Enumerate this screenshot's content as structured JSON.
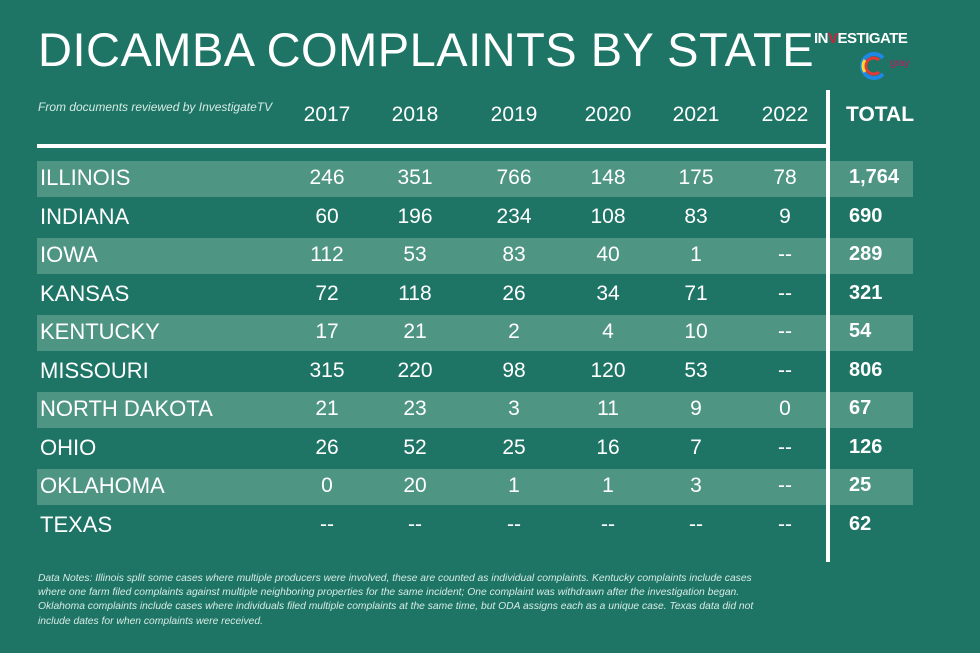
{
  "title": "DICAMBA COMPLAINTS BY STATE",
  "subtitle": "From documents reviewed by InvestigateTV",
  "logo": {
    "text_pre": "IN",
    "text_v": "V",
    "text_post": "ESTIGATE",
    "sub": "gray"
  },
  "colors": {
    "background": "#1f7565",
    "stripe": "#4f9584",
    "accent": "#d0203a"
  },
  "columns": [
    "2017",
    "2018",
    "2019",
    "2020",
    "2021",
    "2022"
  ],
  "total_label": "TOTAL",
  "rows": [
    {
      "state": "ILLINOIS",
      "values": [
        "246",
        "351",
        "766",
        "148",
        "175",
        "78"
      ],
      "total": "1,764"
    },
    {
      "state": "INDIANA",
      "values": [
        "60",
        "196",
        "234",
        "108",
        "83",
        "9"
      ],
      "total": "690"
    },
    {
      "state": "IOWA",
      "values": [
        "112",
        "53",
        "83",
        "40",
        "1",
        "--"
      ],
      "total": "289"
    },
    {
      "state": "KANSAS",
      "values": [
        "72",
        "118",
        "26",
        "34",
        "71",
        "--"
      ],
      "total": "321"
    },
    {
      "state": "KENTUCKY",
      "values": [
        "17",
        "21",
        "2",
        "4",
        "10",
        "--"
      ],
      "total": "54"
    },
    {
      "state": "MISSOURI",
      "values": [
        "315",
        "220",
        "98",
        "120",
        "53",
        "--"
      ],
      "total": "806"
    },
    {
      "state": "NORTH DAKOTA",
      "values": [
        "21",
        "23",
        "3",
        "11",
        "9",
        "0"
      ],
      "total": "67"
    },
    {
      "state": "OHIO",
      "values": [
        "26",
        "52",
        "25",
        "16",
        "7",
        "--"
      ],
      "total": "126"
    },
    {
      "state": "OKLAHOMA",
      "values": [
        "0",
        "20",
        "1",
        "1",
        "3",
        "--"
      ],
      "total": "25"
    },
    {
      "state": "TEXAS",
      "values": [
        "--",
        "--",
        "--",
        "--",
        "--",
        "--"
      ],
      "total": "62"
    }
  ],
  "notes": "Data Notes: Illinois split some cases where multiple producers were involved, these are counted as individual complaints. Kentucky complaints include cases where one farm filed complaints against multiple neighboring properties for the same incident; One complaint was withdrawn after the investigation began. Oklahoma complaints include cases where individuals filed multiple complaints at the same time, but ODA assigns each as a unique case. Texas data did not include dates for when complaints were received."
}
